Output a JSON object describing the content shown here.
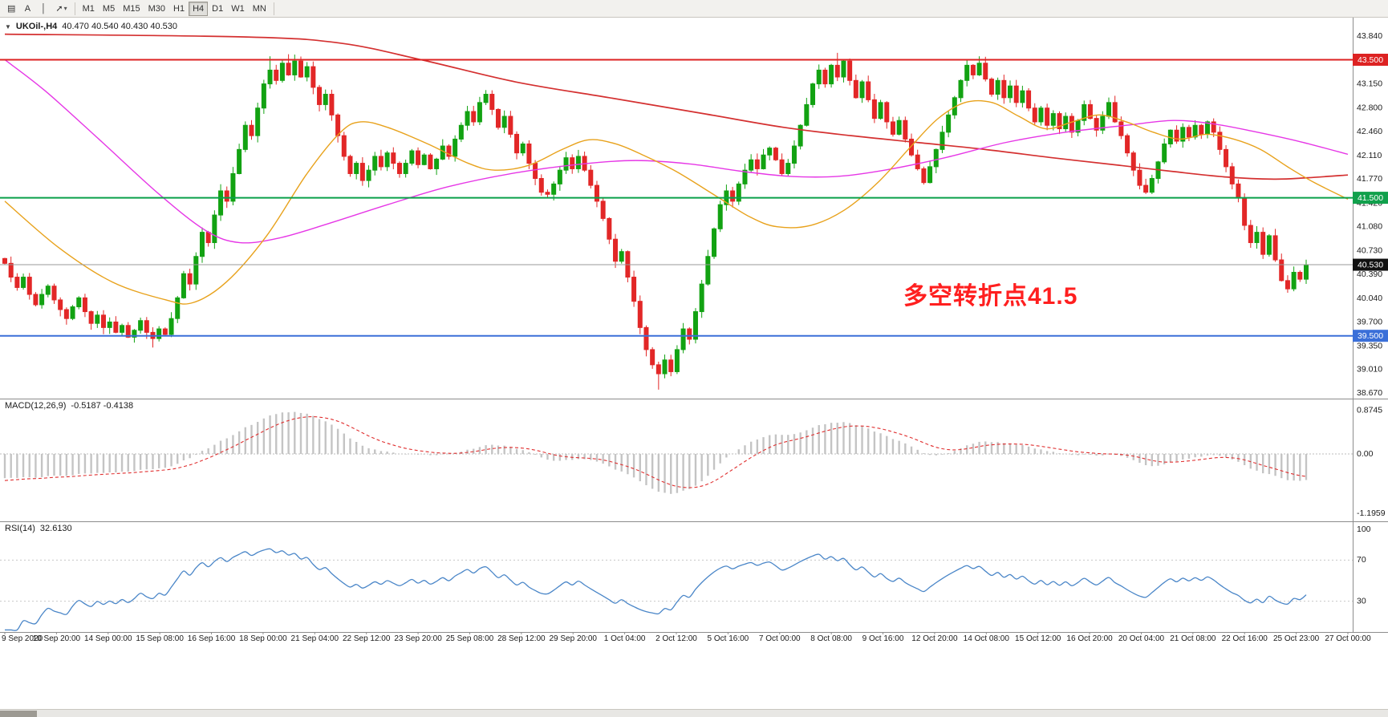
{
  "toolbar": {
    "icons": [
      {
        "name": "chart-objects",
        "glyph": "▤"
      },
      {
        "name": "text-tool",
        "glyph": "A"
      },
      {
        "name": "vertical-line-tool",
        "glyph": "│"
      },
      {
        "name": "indicators-template",
        "glyph": "➚",
        "caret": "▾"
      }
    ],
    "timeframes": [
      "M1",
      "M5",
      "M15",
      "M30",
      "H1",
      "H4",
      "D1",
      "W1",
      "MN"
    ],
    "active_timeframe": "H4"
  },
  "chart": {
    "dropdown_glyph": "▼",
    "symbol_label": "UKOil-,H4",
    "ohlc_label": "40.470 40.540 40.430 40.530",
    "annotation": {
      "text": "多空转折点41.5",
      "color": "#ff1f1f"
    },
    "price_axis_labels": [
      {
        "v": 43.84,
        "t": "43.840"
      },
      {
        "v": 43.15,
        "t": "43.150"
      },
      {
        "v": 42.8,
        "t": "42.800"
      },
      {
        "v": 42.46,
        "t": "42.460"
      },
      {
        "v": 42.11,
        "t": "42.110"
      },
      {
        "v": 41.77,
        "t": "41.770"
      },
      {
        "v": 41.42,
        "t": "41.420"
      },
      {
        "v": 41.08,
        "t": "41.080"
      },
      {
        "v": 40.73,
        "t": "40.730"
      },
      {
        "v": 40.39,
        "t": "40.390"
      },
      {
        "v": 40.04,
        "t": "40.040"
      },
      {
        "v": 39.7,
        "t": "39.700"
      },
      {
        "v": 39.35,
        "t": "39.350"
      },
      {
        "v": 39.01,
        "t": "39.010"
      },
      {
        "v": 38.67,
        "t": "38.670"
      }
    ],
    "hlines": [
      {
        "v": 43.5,
        "color": "#dd2222",
        "w": 2
      },
      {
        "v": 41.5,
        "color": "#0aa04a",
        "w": 2
      },
      {
        "v": 39.5,
        "color": "#3a6fd8",
        "w": 2
      }
    ],
    "current_price": {
      "v": 40.53,
      "color": "#9a9a9a"
    },
    "badges": [
      {
        "v": 43.5,
        "t": "43.500",
        "bg": "#dd2222"
      },
      {
        "v": 41.5,
        "t": "41.500",
        "bg": "#11a04c"
      },
      {
        "v": 40.53,
        "t": "40.530",
        "bg": "#111111"
      },
      {
        "v": 39.5,
        "t": "39.500",
        "bg": "#3a6fd8"
      }
    ]
  },
  "chart_data": {
    "type": "candlestick",
    "symbol": "UKOil-",
    "timeframe": "H4",
    "y_range": [
      38.67,
      43.84
    ],
    "first_open": 40.62,
    "candle_up_color": "#12a212",
    "candle_down_color": "#e22727",
    "closes": [
      40.55,
      40.35,
      40.2,
      40.35,
      40.1,
      39.95,
      40.1,
      40.22,
      40.02,
      39.88,
      39.75,
      39.92,
      40.05,
      39.85,
      39.68,
      39.8,
      39.62,
      39.7,
      39.55,
      39.65,
      39.48,
      39.58,
      39.72,
      39.55,
      39.46,
      39.6,
      39.52,
      39.75,
      40.05,
      40.4,
      40.25,
      40.65,
      41.0,
      40.85,
      41.25,
      41.6,
      41.45,
      41.85,
      42.2,
      42.55,
      42.4,
      42.8,
      43.15,
      43.35,
      43.2,
      43.45,
      43.28,
      43.48,
      43.25,
      43.4,
      43.1,
      42.85,
      43.0,
      42.7,
      42.4,
      42.1,
      41.85,
      42.0,
      41.75,
      41.9,
      42.1,
      41.95,
      42.15,
      42.0,
      41.85,
      42.0,
      42.18,
      41.98,
      42.12,
      41.92,
      42.06,
      42.25,
      42.1,
      42.35,
      42.55,
      42.75,
      42.6,
      42.88,
      43.0,
      42.78,
      42.52,
      42.68,
      42.42,
      42.15,
      42.28,
      42.0,
      41.78,
      41.58,
      41.55,
      41.7,
      41.9,
      42.08,
      41.92,
      42.1,
      41.9,
      41.68,
      41.45,
      41.2,
      40.9,
      40.58,
      40.72,
      40.35,
      40.0,
      39.62,
      39.3,
      39.08,
      38.95,
      39.15,
      38.98,
      39.3,
      39.6,
      39.45,
      39.85,
      40.25,
      40.65,
      41.05,
      41.4,
      41.6,
      41.45,
      41.7,
      41.9,
      42.05,
      41.92,
      42.12,
      42.22,
      42.05,
      41.85,
      42.0,
      42.25,
      42.55,
      42.85,
      43.15,
      43.35,
      43.15,
      43.42,
      43.25,
      43.48,
      43.2,
      42.95,
      43.18,
      42.92,
      42.65,
      42.88,
      42.6,
      42.42,
      42.62,
      42.35,
      42.12,
      41.92,
      41.72,
      41.95,
      42.2,
      42.45,
      42.7,
      42.95,
      43.2,
      43.42,
      43.28,
      43.45,
      43.22,
      43.0,
      43.2,
      42.95,
      43.12,
      42.88,
      43.05,
      42.8,
      42.6,
      42.8,
      42.55,
      42.72,
      42.5,
      42.68,
      42.45,
      42.62,
      42.85,
      42.65,
      42.48,
      42.68,
      42.88,
      42.6,
      42.4,
      42.15,
      41.9,
      41.68,
      41.58,
      41.78,
      42.02,
      42.28,
      42.48,
      42.32,
      42.52,
      42.38,
      42.55,
      42.42,
      42.6,
      42.45,
      42.2,
      41.95,
      41.7,
      41.5,
      41.1,
      40.85,
      41.0,
      40.68,
      40.95,
      40.6,
      40.3,
      40.18,
      40.42,
      40.32,
      40.53
    ],
    "wick_overrides": {
      "24": {
        "low": 39.33
      },
      "43": {
        "high": 43.55
      },
      "46": {
        "high": 43.58
      },
      "106": {
        "low": 38.72
      },
      "135": {
        "high": 43.6
      },
      "158": {
        "high": 43.55
      }
    },
    "indicator_warmup_closes": [
      43.2,
      43.0,
      42.8,
      42.6,
      42.4,
      42.2,
      42.0,
      41.8,
      41.6,
      41.45,
      41.3,
      41.15,
      41.0,
      40.9,
      40.8,
      40.75,
      40.7,
      40.68,
      40.66,
      40.64,
      40.63,
      40.62,
      40.61,
      40.6,
      40.59,
      40.58
    ],
    "x_labels": [
      "9 Sep 2020",
      "10 Sep 20:00",
      "14 Sep 00:00",
      "15 Sep 08:00",
      "16 Sep 16:00",
      "18 Sep 00:00",
      "21 Sep 04:00",
      "22 Sep 12:00",
      "23 Sep 20:00",
      "25 Sep 08:00",
      "28 Sep 12:00",
      "29 Sep 20:00",
      "1 Oct 04:00",
      "2 Oct 12:00",
      "5 Oct 16:00",
      "7 Oct 00:00",
      "8 Oct 08:00",
      "9 Oct 16:00",
      "12 Oct 20:00",
      "14 Oct 08:00",
      "15 Oct 12:00",
      "16 Oct 20:00",
      "20 Oct 04:00",
      "21 Oct 08:00",
      "22 Oct 16:00",
      "25 Oct 23:00",
      "27 Oct 00:00"
    ],
    "ma_lines": [
      {
        "name": "ma-slow",
        "color": "#d43030",
        "width": 1.7,
        "anchors": [
          [
            0,
            43.87
          ],
          [
            0.18,
            43.83
          ],
          [
            0.25,
            43.74
          ],
          [
            0.31,
            43.5
          ],
          [
            0.38,
            43.18
          ],
          [
            0.45,
            42.95
          ],
          [
            0.52,
            42.72
          ],
          [
            0.58,
            42.52
          ],
          [
            0.63,
            42.4
          ],
          [
            0.68,
            42.3
          ],
          [
            0.73,
            42.2
          ],
          [
            0.78,
            42.08
          ],
          [
            0.83,
            41.97
          ],
          [
            0.87,
            41.88
          ],
          [
            0.91,
            41.8
          ],
          [
            0.945,
            41.77
          ],
          [
            0.97,
            41.79
          ],
          [
            1,
            41.83
          ]
        ]
      },
      {
        "name": "ma-medium",
        "color": "#e637e6",
        "width": 1.4,
        "anchors": [
          [
            0,
            43.5
          ],
          [
            0.03,
            43.05
          ],
          [
            0.07,
            42.35
          ],
          [
            0.115,
            41.55
          ],
          [
            0.15,
            41.02
          ],
          [
            0.175,
            40.85
          ],
          [
            0.205,
            40.92
          ],
          [
            0.24,
            41.12
          ],
          [
            0.285,
            41.4
          ],
          [
            0.33,
            41.66
          ],
          [
            0.38,
            41.86
          ],
          [
            0.43,
            41.99
          ],
          [
            0.47,
            42.04
          ],
          [
            0.51,
            41.99
          ],
          [
            0.55,
            41.88
          ],
          [
            0.585,
            41.81
          ],
          [
            0.62,
            41.81
          ],
          [
            0.655,
            41.9
          ],
          [
            0.7,
            42.08
          ],
          [
            0.745,
            42.3
          ],
          [
            0.79,
            42.45
          ],
          [
            0.835,
            42.55
          ],
          [
            0.87,
            42.62
          ],
          [
            0.9,
            42.57
          ],
          [
            0.93,
            42.46
          ],
          [
            0.965,
            42.31
          ],
          [
            1,
            42.13
          ]
        ]
      },
      {
        "name": "ma-fast",
        "color": "#e8a21c",
        "width": 1.4,
        "anchors": [
          [
            0,
            41.45
          ],
          [
            0.04,
            40.78
          ],
          [
            0.08,
            40.28
          ],
          [
            0.12,
            40.02
          ],
          [
            0.14,
            39.98
          ],
          [
            0.165,
            40.28
          ],
          [
            0.195,
            40.95
          ],
          [
            0.225,
            41.85
          ],
          [
            0.25,
            42.45
          ],
          [
            0.265,
            42.6
          ],
          [
            0.285,
            42.52
          ],
          [
            0.315,
            42.28
          ],
          [
            0.345,
            42.0
          ],
          [
            0.365,
            41.9
          ],
          [
            0.39,
            41.97
          ],
          [
            0.415,
            42.2
          ],
          [
            0.435,
            42.34
          ],
          [
            0.455,
            42.28
          ],
          [
            0.475,
            42.12
          ],
          [
            0.5,
            41.88
          ],
          [
            0.53,
            41.52
          ],
          [
            0.555,
            41.22
          ],
          [
            0.575,
            41.08
          ],
          [
            0.6,
            41.1
          ],
          [
            0.625,
            41.32
          ],
          [
            0.65,
            41.72
          ],
          [
            0.675,
            42.25
          ],
          [
            0.695,
            42.65
          ],
          [
            0.715,
            42.88
          ],
          [
            0.735,
            42.88
          ],
          [
            0.755,
            42.68
          ],
          [
            0.775,
            42.5
          ],
          [
            0.795,
            42.6
          ],
          [
            0.815,
            42.7
          ],
          [
            0.835,
            42.6
          ],
          [
            0.855,
            42.45
          ],
          [
            0.875,
            42.35
          ],
          [
            0.895,
            42.42
          ],
          [
            0.915,
            42.35
          ],
          [
            0.935,
            42.2
          ],
          [
            0.955,
            41.95
          ],
          [
            0.975,
            41.72
          ],
          [
            1,
            41.48
          ]
        ]
      }
    ],
    "indicators": {
      "macd": {
        "label": "MACD(12,26,9)",
        "values_label": "-0.5187 -0.4138",
        "fast": 12,
        "slow": 26,
        "signal": 9,
        "axis": [
          {
            "v": 0.8745,
            "t": "0.8745"
          },
          {
            "v": 0,
            "t": "0.00"
          },
          {
            "v": -1.1959,
            "t": "-1.1959"
          }
        ],
        "hist_color": "#c4c4c4",
        "signal_color": "#e03030"
      },
      "rsi": {
        "label": "RSI(14)",
        "value_label": "32.6130",
        "period": 14,
        "levels": [
          70,
          30
        ],
        "axis": [
          {
            "v": 100,
            "t": "100"
          },
          {
            "v": 70,
            "t": "70"
          },
          {
            "v": 30,
            "t": "30"
          }
        ],
        "line_color": "#4a86c8"
      }
    }
  }
}
